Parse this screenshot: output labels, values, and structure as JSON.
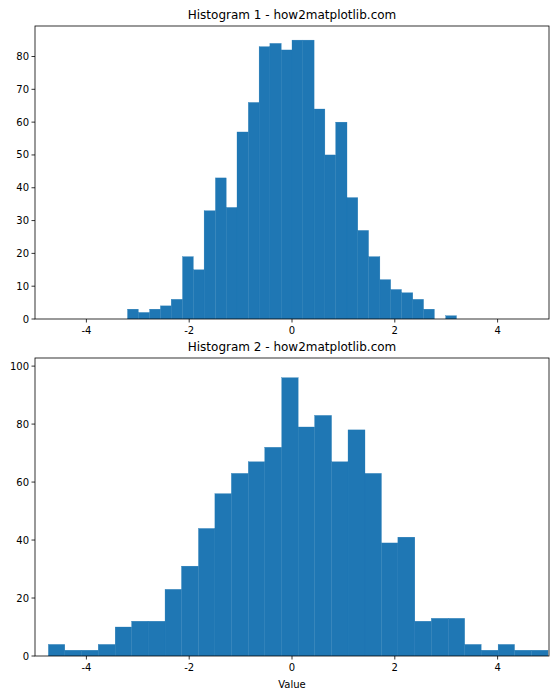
{
  "chart_data": [
    {
      "type": "histogram",
      "title": "Histogram 1 - how2matplotlib.com",
      "color": "#1f77b4",
      "bins": [
        -3.2,
        -2.99,
        -2.77,
        -2.56,
        -2.35,
        -2.13,
        -1.92,
        -1.71,
        -1.49,
        -1.28,
        -1.07,
        -0.85,
        -0.64,
        -0.43,
        -0.21,
        0,
        0.21,
        0.43,
        0.64,
        0.85,
        1.07,
        1.28,
        1.49,
        1.71,
        1.92,
        2.13,
        2.35,
        2.56,
        2.77,
        2.99,
        3.2
      ],
      "values": [
        3,
        2,
        3,
        4,
        6,
        19,
        15,
        33,
        43,
        34,
        57,
        66,
        83,
        84,
        82,
        85,
        85,
        64,
        50,
        60,
        37,
        27,
        19,
        12,
        9,
        8,
        6,
        3,
        0,
        1
      ],
      "xlim": [
        -5,
        5
      ],
      "xticks": [
        -4,
        -2,
        0,
        2,
        4
      ],
      "ylim": [
        0,
        89.3
      ],
      "yticks": [
        0,
        10,
        20,
        30,
        40,
        50,
        60,
        70,
        80
      ]
    },
    {
      "type": "histogram",
      "title": "Histogram 2 - how2matplotlib.com",
      "x_label": "Value",
      "color": "#1f77b4",
      "bins": [
        -4.74,
        -4.42,
        -4.09,
        -3.77,
        -3.44,
        -3.12,
        -2.8,
        -2.47,
        -2.15,
        -1.82,
        -1.5,
        -1.18,
        -0.85,
        -0.53,
        -0.2,
        0.12,
        0.44,
        0.77,
        1.09,
        1.42,
        1.74,
        2.06,
        2.39,
        2.71,
        3.04,
        3.36,
        3.68,
        4.01,
        4.33,
        4.66,
        4.98
      ],
      "values": [
        4,
        2,
        2,
        4,
        10,
        12,
        12,
        23,
        31,
        44,
        56,
        63,
        67,
        72,
        96,
        79,
        83,
        67,
        78,
        63,
        39,
        41,
        12,
        13,
        13,
        4,
        2,
        4,
        2,
        2
      ],
      "xlim": [
        -5,
        5
      ],
      "xticks": [
        -4,
        -2,
        0,
        2,
        4
      ],
      "ylim": [
        0,
        102.8
      ],
      "yticks": [
        0,
        20,
        40,
        60,
        80,
        100
      ]
    }
  ]
}
